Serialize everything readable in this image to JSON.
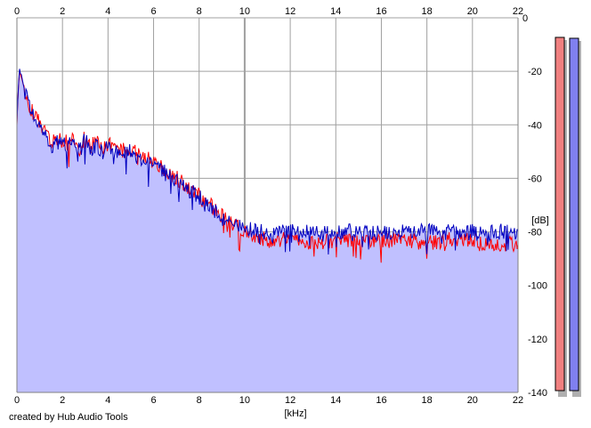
{
  "credit": "created by Hub Audio Tools",
  "chart_data": {
    "type": "line",
    "xlabel": "[kHz]",
    "ylabel": "[dB]",
    "xlim": [
      0,
      22
    ],
    "ylim": [
      -140,
      0
    ],
    "x_ticks": [
      "0",
      "2",
      "4",
      "6",
      "8",
      "10",
      "12",
      "14",
      "16",
      "18",
      "20",
      "22"
    ],
    "y_ticks": [
      "0",
      "-20",
      "-40",
      "-60",
      "-80",
      "-100",
      "-120",
      "-140"
    ],
    "grid": true,
    "plot_background": "#ffffff",
    "fill_color": "#c0c0ff",
    "series": [
      {
        "color": "#ff0000",
        "x": [
          0,
          0.1,
          0.2,
          0.35,
          0.5,
          0.75,
          1,
          1.25,
          1.5,
          1.75,
          2,
          2.25,
          2.5,
          2.75,
          3,
          3.25,
          3.5,
          3.75,
          4,
          4.5,
          5,
          5.5,
          6,
          6.5,
          7,
          7.5,
          8,
          8.5,
          9,
          9.5,
          10,
          11,
          12,
          13,
          14,
          15,
          16,
          17,
          18,
          19,
          20,
          20.5,
          21,
          21.5,
          22
        ],
        "values": [
          -40,
          -19,
          -22,
          -28,
          -32,
          -36,
          -39,
          -42,
          -47,
          -45,
          -46,
          -47,
          -45,
          -49,
          -44,
          -48,
          -46,
          -49,
          -47,
          -50,
          -49,
          -52,
          -54,
          -57,
          -60,
          -63,
          -66,
          -70,
          -74,
          -77,
          -80,
          -83,
          -83,
          -84,
          -83,
          -84,
          -83,
          -83,
          -84,
          -83,
          -83,
          -85,
          -84,
          -85,
          -84
        ]
      },
      {
        "color": "#0000c0",
        "x": [
          0,
          0.1,
          0.2,
          0.35,
          0.5,
          0.75,
          1,
          1.25,
          1.5,
          1.75,
          2,
          2.25,
          2.5,
          2.75,
          3,
          3.25,
          3.5,
          3.75,
          4,
          4.5,
          5,
          5.5,
          6,
          6.5,
          7,
          7.5,
          8,
          8.5,
          9,
          9.5,
          10,
          11,
          12,
          13,
          14,
          15,
          16,
          17,
          18,
          19,
          20,
          20.5,
          21,
          21.5,
          22
        ],
        "values": [
          -39,
          -19,
          -22,
          -28,
          -32,
          -37,
          -40,
          -43,
          -48,
          -46,
          -47,
          -48,
          -46,
          -50,
          -45,
          -49,
          -47,
          -50,
          -48,
          -51,
          -50,
          -53,
          -55,
          -58,
          -61,
          -64,
          -67,
          -71,
          -75,
          -77,
          -79,
          -80,
          -80,
          -80,
          -80,
          -80,
          -80,
          -80,
          -80,
          -80,
          -80,
          -81,
          -80,
          -80,
          -80
        ]
      }
    ],
    "level_meters": [
      {
        "color": "#f08080",
        "level_db": -7
      },
      {
        "color": "#8080f0",
        "level_db": -8
      }
    ]
  }
}
